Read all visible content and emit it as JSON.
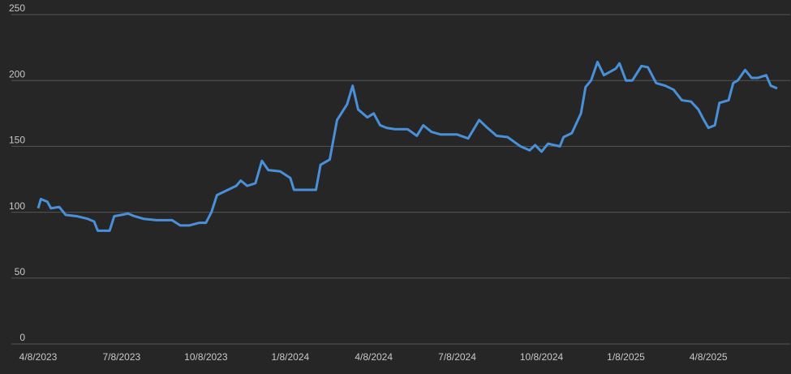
{
  "chart_data": {
    "type": "line",
    "x": [
      "4/8/2023",
      "4/11/2023",
      "4/18/2023",
      "4/22/2023",
      "5/1/2023",
      "5/8/2023",
      "5/20/2023",
      "6/1/2023",
      "6/8/2023",
      "6/12/2023",
      "6/25/2023",
      "6/30/2023",
      "7/8/2023",
      "7/15/2023",
      "7/22/2023",
      "8/1/2023",
      "8/15/2023",
      "9/1/2023",
      "9/10/2023",
      "9/20/2023",
      "10/1/2023",
      "10/8/2023",
      "10/14/2023",
      "10/20/2023",
      "11/1/2023",
      "11/10/2023",
      "11/15/2023",
      "11/22/2023",
      "12/1/2023",
      "12/8/2023",
      "12/15/2023",
      "12/28/2023",
      "1/8/2024",
      "1/12/2024",
      "1/25/2024",
      "2/5/2024",
      "2/10/2024",
      "2/20/2024",
      "2/28/2024",
      "3/10/2024",
      "3/16/2024",
      "3/22/2024",
      "4/1/2024",
      "4/8/2024",
      "4/15/2024",
      "4/22/2024",
      "5/1/2024",
      "5/15/2024",
      "5/25/2024",
      "6/1/2024",
      "6/10/2024",
      "6/20/2024",
      "7/8/2024",
      "7/20/2024",
      "8/1/2024",
      "8/10/2024",
      "8/20/2024",
      "9/1/2024",
      "9/15/2024",
      "9/25/2024",
      "10/1/2024",
      "10/8/2024",
      "10/15/2024",
      "10/28/2024",
      "11/1/2024",
      "11/10/2024",
      "11/20/2024",
      "11/25/2024",
      "12/1/2024",
      "12/8/2024",
      "12/15/2024",
      "12/28/2024",
      "1/1/2025",
      "1/8/2025",
      "1/15/2025",
      "1/25/2025",
      "2/1/2025",
      "2/10/2025",
      "2/20/2025",
      "3/1/2025",
      "3/10/2025",
      "3/20/2025",
      "3/28/2025",
      "4/3/2025",
      "4/8/2025",
      "4/15/2025",
      "4/20/2025",
      "4/30/2025",
      "5/5/2025",
      "5/10/2025",
      "5/18/2025",
      "5/25/2025",
      "6/1/2025",
      "6/10/2025",
      "6/15/2025",
      "6/22/2025"
    ],
    "series": [
      {
        "color": "#4a90d9",
        "values": [
          103,
          110,
          108,
          103,
          104,
          98,
          97,
          95,
          93,
          86,
          86,
          97,
          98,
          99,
          97,
          95,
          94,
          94,
          90,
          90,
          92,
          92,
          100,
          113,
          117,
          120,
          124,
          120,
          122,
          139,
          132,
          131,
          126,
          117,
          117,
          117,
          136,
          140,
          170,
          182,
          196,
          178,
          172,
          175,
          166,
          164,
          163,
          163,
          158,
          166,
          161,
          159,
          159,
          156,
          170,
          164,
          158,
          157,
          150,
          147,
          151,
          146,
          152,
          150,
          157,
          160,
          175,
          195,
          200,
          214,
          204,
          209,
          213,
          200,
          200,
          211,
          210,
          198,
          196,
          193,
          185,
          184,
          178,
          170,
          164,
          166,
          183,
          185,
          198,
          200,
          208,
          202,
          202,
          204,
          196,
          194
        ]
      }
    ],
    "xlim": [
      "4/8/2023",
      "6/22/2025"
    ],
    "xticks": [
      "4/8/2023",
      "7/8/2023",
      "10/8/2023",
      "1/8/2024",
      "4/8/2024",
      "7/8/2024",
      "10/8/2024",
      "1/8/2025",
      "4/8/2025"
    ],
    "ylim": [
      0,
      250
    ],
    "yticks": [
      0,
      50,
      100,
      150,
      200,
      250
    ],
    "grid": true
  }
}
